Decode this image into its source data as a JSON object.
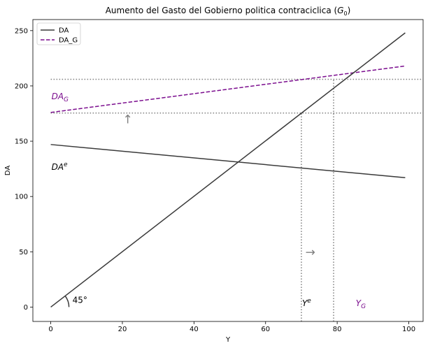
{
  "chart_data": {
    "type": "line",
    "title": "Aumento del Gasto del Gobierno politica contraciclica (G0)",
    "title_main": "Aumento del Gasto del Gobierno politica contraciclica (",
    "title_var": "G",
    "title_sub": "0",
    "title_end": ")",
    "xlabel": "Y",
    "ylabel": "DA",
    "xlim": [
      -5,
      104
    ],
    "ylim": [
      -13,
      260
    ],
    "xticks": [
      0,
      20,
      40,
      60,
      80,
      100
    ],
    "yticks": [
      0,
      50,
      100,
      150,
      200,
      250
    ],
    "grid": false,
    "legend_position": "upper-left",
    "series": [
      {
        "name": "DA",
        "color": "#3a3a3a",
        "style": "solid",
        "x": [
          0,
          99
        ],
        "y": [
          147,
          117
        ]
      },
      {
        "name": "DA_G",
        "color": "#7b0d8e",
        "style": "dashed",
        "x": [
          0,
          99
        ],
        "y": [
          176,
          218
        ]
      },
      {
        "name": "",
        "color": "#3a3a3a",
        "style": "solid",
        "x": [
          0,
          99
        ],
        "y": [
          0,
          248
        ]
      }
    ],
    "guides": [
      {
        "x": [
          0,
          104
        ],
        "y": [
          175.5,
          175.5
        ]
      },
      {
        "x": [
          0,
          104
        ],
        "y": [
          206,
          206
        ]
      },
      {
        "x": [
          70,
          70
        ],
        "y": [
          -13,
          175.5
        ]
      },
      {
        "x": [
          79,
          79
        ],
        "y": [
          -13,
          206
        ]
      }
    ],
    "annotations": [
      {
        "id": "dag",
        "base": "DA",
        "sub": "G",
        "sup": "",
        "x": 0,
        "y": 188,
        "color": "#7b0d8e"
      },
      {
        "id": "dae",
        "base": "DA",
        "sub": "",
        "sup": "e",
        "x": 0,
        "y": 124,
        "color": "#000000"
      },
      {
        "id": "ye",
        "base": "Y",
        "sub": "",
        "sup": "e",
        "x": 70,
        "y": 1,
        "color": "#000000"
      },
      {
        "id": "yg",
        "base": "Y",
        "sub": "G",
        "sup": "",
        "x": 85,
        "y": 1,
        "color": "#7b0d8e"
      }
    ],
    "angle_label": "45°",
    "arrow_glyphs": {
      "up": "↑",
      "right": "→"
    },
    "arrow_positions": [
      {
        "id": "arrow-up",
        "x": 21.5,
        "y": 166
      },
      {
        "id": "arrow-right",
        "x": 72.5,
        "y": 46
      }
    ]
  },
  "colors": {
    "da_line": "#3a3a3a",
    "dag_line": "#7b0d8e",
    "guide": "#7f7f7f",
    "arrow": "#7f7f7f"
  }
}
